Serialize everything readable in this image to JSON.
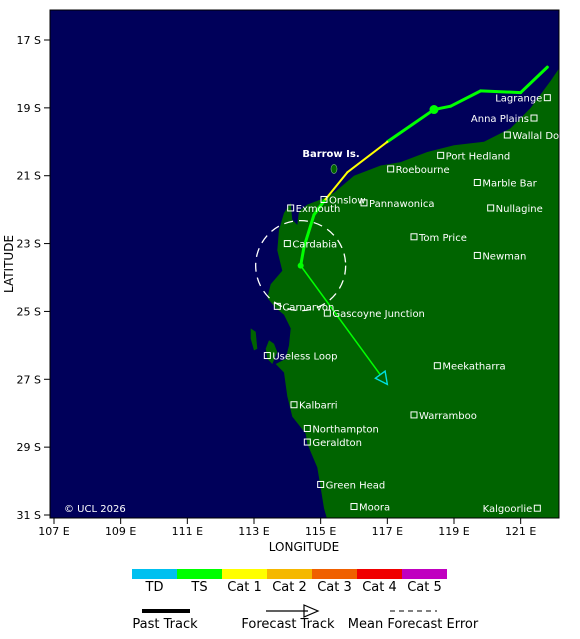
{
  "axes": {
    "xlabel": "LONGITUDE",
    "ylabel": "LATITUDE",
    "x_ticks": [
      "107 E",
      "109 E",
      "111 E",
      "113 E",
      "115 E",
      "117 E",
      "119 E",
      "121 E"
    ],
    "y_ticks": [
      "17 S",
      "19 S",
      "21 S",
      "23 S",
      "25 S",
      "27 S",
      "29 S",
      "31 S"
    ]
  },
  "copyright": "© UCL 2026",
  "island_label": "Barrow Is.",
  "towns": [
    {
      "name": "Lagrange",
      "lon": 121.8,
      "lat": -18.7
    },
    {
      "name": "Anna Plains",
      "lon": 121.4,
      "lat": -19.3
    },
    {
      "name": "Wallal Downs",
      "lon": 120.6,
      "lat": -19.8
    },
    {
      "name": "Port Hedland",
      "lon": 118.6,
      "lat": -20.4
    },
    {
      "name": "Roebourne",
      "lon": 117.1,
      "lat": -20.8
    },
    {
      "name": "Marble Bar",
      "lon": 119.7,
      "lat": -21.2
    },
    {
      "name": "Onslow",
      "lon": 115.1,
      "lat": -21.7
    },
    {
      "name": "Exmouth",
      "lon": 114.1,
      "lat": -21.95
    },
    {
      "name": "Pannawonica",
      "lon": 116.3,
      "lat": -21.8
    },
    {
      "name": "Nullagine",
      "lon": 120.1,
      "lat": -21.95
    },
    {
      "name": "Cardabia",
      "lon": 114.0,
      "lat": -23.0
    },
    {
      "name": "Tom Price",
      "lon": 117.8,
      "lat": -22.8
    },
    {
      "name": "Newman",
      "lon": 119.7,
      "lat": -23.35
    },
    {
      "name": "Carnarvon",
      "lon": 113.7,
      "lat": -24.85
    },
    {
      "name": "Gascoyne Junction",
      "lon": 115.2,
      "lat": -25.05
    },
    {
      "name": "Useless Loop",
      "lon": 113.4,
      "lat": -26.3
    },
    {
      "name": "Meekatharra",
      "lon": 118.5,
      "lat": -26.6
    },
    {
      "name": "Kalbarri",
      "lon": 114.2,
      "lat": -27.75
    },
    {
      "name": "Warramboo",
      "lon": 117.8,
      "lat": -28.05
    },
    {
      "name": "Northampton",
      "lon": 114.6,
      "lat": -28.45
    },
    {
      "name": "Geraldton",
      "lon": 114.6,
      "lat": -28.85
    },
    {
      "name": "Green Head",
      "lon": 115.0,
      "lat": -30.1
    },
    {
      "name": "Moora",
      "lon": 116.0,
      "lat": -30.75
    },
    {
      "name": "Kalgoorlie",
      "lon": 121.5,
      "lat": -30.8
    }
  ],
  "past_track": [
    {
      "lon": 121.8,
      "lat": -17.8,
      "cat": "TD"
    },
    {
      "lon": 121.0,
      "lat": -18.55,
      "cat": "TS"
    },
    {
      "lon": 119.8,
      "lat": -18.5,
      "cat": "TS"
    },
    {
      "lon": 118.9,
      "lat": -18.95,
      "cat": "TS"
    },
    {
      "lon": 118.4,
      "lat": -19.05,
      "cat": "TS"
    },
    {
      "lon": 117.0,
      "lat": -20.0,
      "cat": "TS"
    },
    {
      "lon": 115.8,
      "lat": -20.9,
      "cat": "Cat 1"
    },
    {
      "lon": 115.1,
      "lat": -21.75,
      "cat": "Cat 1"
    },
    {
      "lon": 114.8,
      "lat": -22.15,
      "cat": "TS"
    },
    {
      "lon": 114.5,
      "lat": -23.1,
      "cat": "TS"
    },
    {
      "lon": 114.4,
      "lat": -23.65,
      "cat": "TS"
    }
  ],
  "current_position": {
    "lon": 114.4,
    "lat": -23.65
  },
  "forecast_track": [
    {
      "lon": 114.4,
      "lat": -23.65
    },
    {
      "lon": 117.0,
      "lat": -27.15
    }
  ],
  "forecast_error_radius_deg": 1.35,
  "legend": {
    "categories": [
      {
        "label": "TD",
        "color": "#00c0f0"
      },
      {
        "label": "TS",
        "color": "#00ff00"
      },
      {
        "label": "Cat 1",
        "color": "#ffff00"
      },
      {
        "label": "Cat 2",
        "color": "#f5b800"
      },
      {
        "label": "Cat 3",
        "color": "#f06000"
      },
      {
        "label": "Cat 4",
        "color": "#f00000"
      },
      {
        "label": "Cat 5",
        "color": "#c000c0"
      }
    ],
    "past_track_label": "Past Track",
    "forecast_track_label": "Forecast Track",
    "error_label": "Mean Forecast Error"
  },
  "colors": {
    "ocean": "#00005a",
    "land": "#006400",
    "label_green": "#40ff40"
  }
}
